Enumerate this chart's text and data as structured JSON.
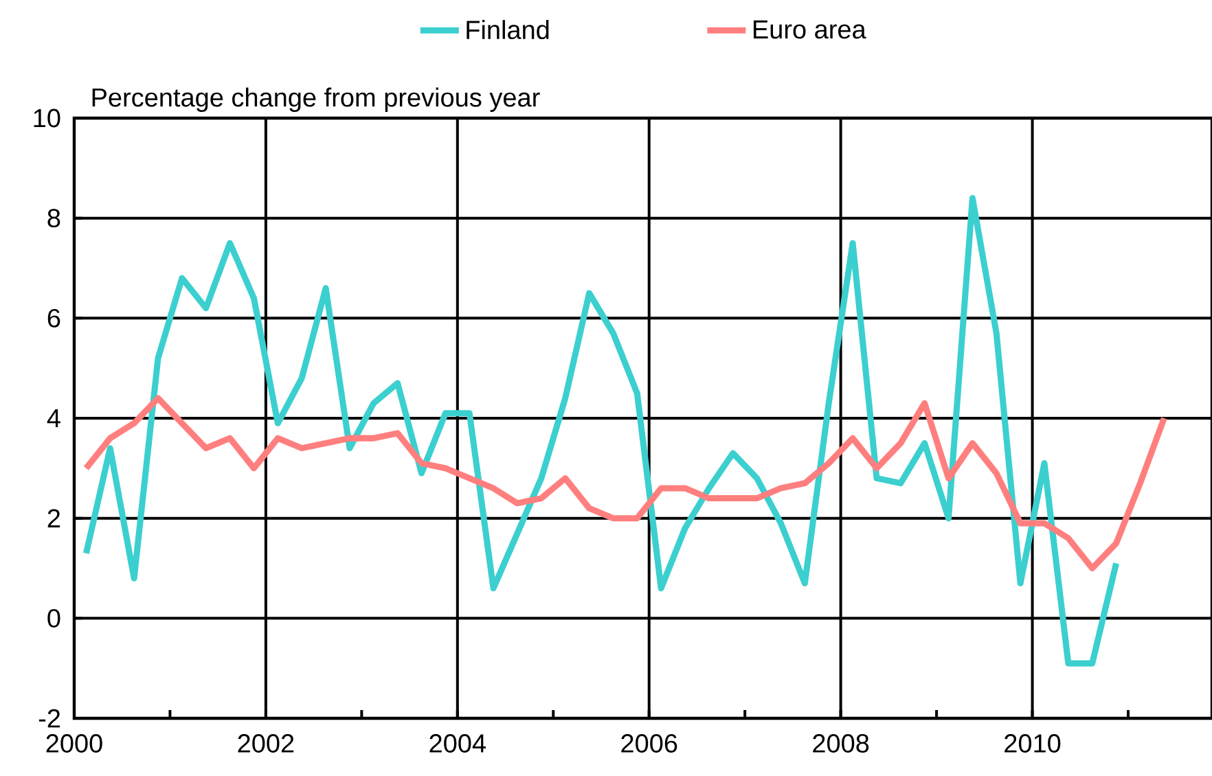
{
  "chart_data": {
    "type": "line",
    "ylabel": "Percentage change from previous year",
    "xlim": [
      2000,
      2011.875
    ],
    "ylim": [
      -2,
      10
    ],
    "xticks": [
      {
        "value": 2000,
        "label": "2000"
      },
      {
        "value": 2001,
        "label": null
      },
      {
        "value": 2002,
        "label": "2002"
      },
      {
        "value": 2003,
        "label": null
      },
      {
        "value": 2004,
        "label": "2004"
      },
      {
        "value": 2005,
        "label": null
      },
      {
        "value": 2006,
        "label": "2006"
      },
      {
        "value": 2007,
        "label": null
      },
      {
        "value": 2008,
        "label": "2008"
      },
      {
        "value": 2009,
        "label": null
      },
      {
        "value": 2010,
        "label": "2010"
      },
      {
        "value": 2011,
        "label": null
      }
    ],
    "yticks": [
      -2,
      0,
      2,
      4,
      6,
      8,
      10
    ],
    "grid": true,
    "legend": "top",
    "marker": "none",
    "line_style": "solid",
    "series": [
      {
        "name": "Finland",
        "color": "#3ccfcf",
        "x": [
          2000.125,
          2000.375,
          2000.625,
          2000.875,
          2001.125,
          2001.375,
          2001.625,
          2001.875,
          2002.125,
          2002.375,
          2002.625,
          2002.875,
          2003.125,
          2003.375,
          2003.625,
          2003.875,
          2004.125,
          2004.375,
          2004.625,
          2004.875,
          2005.125,
          2005.375,
          2005.625,
          2005.875,
          2006.125,
          2006.375,
          2006.625,
          2006.875,
          2007.125,
          2007.375,
          2007.625,
          2007.875,
          2008.125,
          2008.375,
          2008.625,
          2008.875,
          2009.125,
          2009.375,
          2009.625,
          2009.875,
          2010.125,
          2010.375,
          2010.625,
          2010.875
        ],
        "values": [
          1.3,
          3.4,
          0.8,
          5.2,
          6.8,
          6.2,
          7.5,
          6.4,
          3.9,
          4.8,
          6.6,
          3.4,
          4.3,
          4.7,
          2.9,
          4.1,
          4.1,
          0.6,
          1.7,
          2.8,
          4.4,
          6.5,
          5.7,
          4.5,
          0.6,
          1.8,
          2.6,
          3.3,
          2.8,
          1.9,
          0.7,
          4.3,
          7.5,
          2.8,
          2.7,
          3.5,
          2.0,
          8.4,
          5.7,
          0.7,
          3.1,
          -0.9,
          -0.9,
          1.1
        ]
      },
      {
        "name": "Euro area",
        "color": "#ff7f7f",
        "x": [
          2000.125,
          2000.375,
          2000.625,
          2000.875,
          2001.125,
          2001.375,
          2001.625,
          2001.875,
          2002.125,
          2002.375,
          2002.625,
          2002.875,
          2003.125,
          2003.375,
          2003.625,
          2003.875,
          2004.125,
          2004.375,
          2004.625,
          2004.875,
          2005.125,
          2005.375,
          2005.625,
          2005.875,
          2006.125,
          2006.375,
          2006.625,
          2006.875,
          2007.125,
          2007.375,
          2007.625,
          2007.875,
          2008.125,
          2008.375,
          2008.625,
          2008.875,
          2009.125,
          2009.375,
          2009.625,
          2009.875,
          2010.125,
          2010.375,
          2010.625,
          2010.875,
          2011.125,
          2011.375
        ],
        "values": [
          3.0,
          3.6,
          3.9,
          4.4,
          3.9,
          3.4,
          3.6,
          3.0,
          3.6,
          3.4,
          3.5,
          3.6,
          3.6,
          3.7,
          3.1,
          3.0,
          2.8,
          2.6,
          2.3,
          2.4,
          2.8,
          2.2,
          2.0,
          2.0,
          2.6,
          2.6,
          2.4,
          2.4,
          2.4,
          2.6,
          2.7,
          3.1,
          3.6,
          3.0,
          3.5,
          4.3,
          2.8,
          3.5,
          2.9,
          1.9,
          1.9,
          1.6,
          1.0,
          1.5,
          2.7,
          4.0
        ]
      }
    ]
  }
}
